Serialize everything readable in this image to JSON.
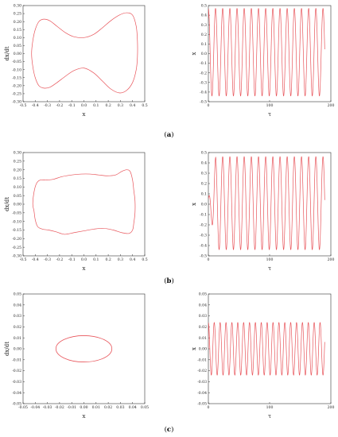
{
  "panels": [
    {
      "letter": "a"
    },
    {
      "letter": "b"
    },
    {
      "letter": "c"
    }
  ],
  "chart_data": [
    {
      "panel": "a",
      "type": "line",
      "plot": "phase",
      "xlabel": "x",
      "ylabel": "dx/dt",
      "xlim": [
        -0.5,
        0.5
      ],
      "ylim": [
        -0.3,
        0.3
      ],
      "xticks": [
        "-0.5",
        "-0.4",
        "-0.3",
        "-0.2",
        "-0.1",
        "0.0",
        "0.1",
        "0.2",
        "0.3",
        "0.4",
        "0.5"
      ],
      "yticks": [
        "0.30",
        "0.25",
        "0.20",
        "0.15",
        "0.10",
        "0.05",
        "0.00",
        "-0.05",
        "-0.10",
        "-0.15",
        "-0.20",
        "-0.25",
        "-0.30"
      ],
      "series": [
        {
          "x": [
            -0.43,
            -0.42,
            -0.4,
            -0.37,
            -0.33,
            -0.28,
            -0.22,
            -0.15,
            -0.08,
            0.0,
            0.08,
            0.15,
            0.22,
            0.29,
            0.35,
            0.4,
            0.43,
            0.44,
            0.44,
            0.43,
            0.4,
            0.35,
            0.29,
            0.22,
            0.15,
            0.08,
            0.0,
            -0.08,
            -0.15,
            -0.22,
            -0.28,
            -0.33,
            -0.37,
            -0.4,
            -0.42,
            -0.43
          ],
          "y": [
            0.0,
            0.08,
            0.15,
            0.2,
            0.215,
            0.205,
            0.17,
            0.13,
            0.105,
            0.1,
            0.12,
            0.16,
            0.205,
            0.24,
            0.255,
            0.24,
            0.17,
            0.08,
            -0.02,
            -0.1,
            -0.18,
            -0.23,
            -0.245,
            -0.22,
            -0.17,
            -0.12,
            -0.09,
            -0.105,
            -0.14,
            -0.18,
            -0.21,
            -0.215,
            -0.2,
            -0.15,
            -0.08,
            0.0
          ]
        }
      ]
    },
    {
      "panel": "a",
      "type": "line",
      "plot": "time",
      "xlabel": "τ",
      "ylabel": "x",
      "xlim": [
        0,
        200
      ],
      "ylim": [
        -0.5,
        0.5
      ],
      "xticks": [
        "0",
        "100",
        "200"
      ],
      "yticks": [
        "0.5",
        "0.4",
        "0.3",
        "0.2",
        "0.1",
        "0.0",
        "-0.1",
        "-0.2",
        "-0.3",
        "-0.4",
        "-0.5"
      ],
      "series": [
        {
          "t_end": 190,
          "period": 11.7,
          "amplitude_max": 0.47,
          "amplitude_min": -0.44,
          "start": 0.37,
          "transient": 0
        }
      ]
    },
    {
      "panel": "b",
      "type": "line",
      "plot": "phase",
      "xlabel": "x",
      "ylabel": "dx/dt",
      "xlim": [
        -0.5,
        0.5
      ],
      "ylim": [
        -0.3,
        0.3
      ],
      "xticks": [
        "-0.5",
        "-0.4",
        "-0.3",
        "-0.2",
        "-0.1",
        "0.0",
        "0.1",
        "0.2",
        "0.3",
        "0.4",
        "0.5"
      ],
      "yticks": [
        "0.30",
        "0.25",
        "0.20",
        "0.15",
        "0.10",
        "0.05",
        "0.00",
        "-0.05",
        "-0.10",
        "-0.15",
        "-0.20",
        "-0.25",
        "-0.30"
      ],
      "series": [
        {
          "x": [
            -0.42,
            -0.41,
            -0.39,
            -0.36,
            -0.31,
            -0.25,
            -0.18,
            -0.1,
            -0.02,
            0.05,
            0.12,
            0.19,
            0.26,
            0.31,
            0.35,
            0.38,
            0.4,
            0.41,
            0.42,
            0.42,
            0.41,
            0.4,
            0.37,
            0.31,
            0.24,
            0.16,
            0.08,
            0.0,
            -0.08,
            -0.16,
            -0.23,
            -0.29,
            -0.34,
            -0.38,
            -0.4,
            -0.41,
            -0.42
          ],
          "y": [
            0.0,
            0.07,
            0.12,
            0.14,
            0.14,
            0.145,
            0.16,
            0.17,
            0.175,
            0.175,
            0.17,
            0.165,
            0.17,
            0.19,
            0.2,
            0.19,
            0.14,
            0.08,
            0.02,
            -0.05,
            -0.11,
            -0.15,
            -0.17,
            -0.165,
            -0.15,
            -0.14,
            -0.145,
            -0.155,
            -0.165,
            -0.175,
            -0.16,
            -0.15,
            -0.145,
            -0.13,
            -0.09,
            -0.04,
            0.0
          ]
        }
      ]
    },
    {
      "panel": "b",
      "type": "line",
      "plot": "time",
      "xlabel": "τ",
      "ylabel": "x",
      "xlim": [
        0,
        200
      ],
      "ylim": [
        -0.5,
        0.5
      ],
      "xticks": [
        "0",
        "100",
        "200"
      ],
      "yticks": [
        "0.5",
        "0.4",
        "0.3",
        "0.2",
        "0.1",
        "0.0",
        "-0.1",
        "-0.2",
        "-0.3",
        "-0.4",
        "-0.5"
      ],
      "series": [
        {
          "t_end": 190,
          "period": 11.7,
          "amplitude_max": 0.46,
          "amplitude_min": -0.44,
          "start": 0.05,
          "transient": 12
        }
      ]
    },
    {
      "panel": "c",
      "type": "line",
      "plot": "phase",
      "xlabel": "x",
      "ylabel": "dx/dt",
      "xlim": [
        -0.05,
        0.05
      ],
      "ylim": [
        -0.05,
        0.05
      ],
      "xticks": [
        "-0.05",
        "-0.04",
        "-0.03",
        "-0.02",
        "-0.01",
        "0.00",
        "0.01",
        "0.02",
        "0.03",
        "0.04",
        "0.05"
      ],
      "yticks": [
        "0.05",
        "0.04",
        "0.03",
        "0.02",
        "0.01",
        "0.00",
        "-0.01",
        "-0.02",
        "-0.03",
        "-0.04",
        "-0.05"
      ],
      "series": [
        {
          "ellipse_center": [
            0.0,
            0.0
          ],
          "ellipse_rx": 0.023,
          "ellipse_ry": 0.012
        }
      ]
    },
    {
      "panel": "c",
      "type": "line",
      "plot": "time",
      "xlabel": "τ",
      "ylabel": "x",
      "xlim": [
        0,
        200
      ],
      "ylim": [
        -0.05,
        0.05
      ],
      "xticks": [
        "0",
        "100",
        "200"
      ],
      "yticks": [
        "0.05",
        "0.04",
        "0.03",
        "0.02",
        "0.01",
        "0.00",
        "-0.01",
        "-0.02",
        "-0.03",
        "-0.04",
        "-0.05"
      ],
      "series": [
        {
          "t_end": 190,
          "period": 9.6,
          "amplitude_max": 0.024,
          "amplitude_min": -0.024,
          "start": 0.0,
          "transient": 0
        }
      ]
    }
  ],
  "colors": {
    "line": "#e8545a",
    "axis": "#333333"
  }
}
